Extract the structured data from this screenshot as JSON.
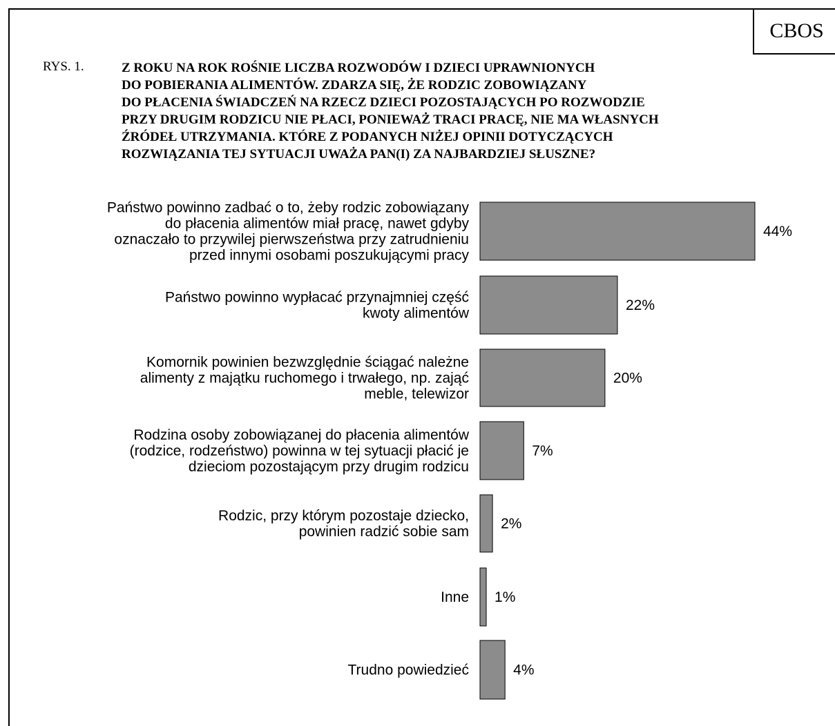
{
  "header": {
    "source_badge": "CBOS",
    "figure_label": "RYS. 1."
  },
  "question_lines": [
    "Z ROKU NA ROK ROŚNIE LICZBA ROZWODÓW I DZIECI UPRAWNIONYCH",
    "DO POBIERANIA ALIMENTÓW. ZDARZA SIĘ, ŻE RODZIC ZOBOWIĄZANY",
    "DO PŁACENIA ŚWIADCZEŃ NA RZECZ DZIECI POZOSTAJĄCYCH PO ROZWODZIE",
    "PRZY DRUGIM RODZICU NIE PŁACI, PONIEWAŻ TRACI PRACĘ, NIE MA WŁASNYCH",
    "ŹRÓDEŁ UTRZYMANIA. KTÓRE Z PODANYCH NIŻEJ OPINII DOTYCZĄCYCH",
    "ROZWIĄZANIA TEJ SYTUACJI UWAŻA PAN(I) ZA NAJBARDZIEJ SŁUSZNE?"
  ],
  "colors": {
    "bar_fill": "#8c8c8c",
    "bar_stroke": "#000000"
  },
  "chart_data": {
    "type": "bar",
    "orientation": "horizontal",
    "grid": false,
    "legend": "none",
    "xlim": [
      0,
      44
    ],
    "categories": [
      [
        "Państwo powinno zadbać o to, żeby rodzic zobowiązany",
        "do płacenia alimentów miał pracę, nawet gdyby",
        "oznaczało to przywilej pierwszeństwa przy zatrudnieniu",
        "przed innymi osobami poszukującymi pracy"
      ],
      [
        "Państwo powinno wypłacać przynajmniej część",
        "kwoty alimentów"
      ],
      [
        "Komornik powinien bezwzględnie ściągać należne",
        "alimenty z majątku ruchomego i trwałego, np. zająć",
        "meble, telewizor"
      ],
      [
        "Rodzina osoby zobowiązanej do płacenia alimentów",
        "(rodzice, rodzeństwo) powinna w tej sytuacji płacić je",
        "dzieciom pozostającym przy drugim rodzicu"
      ],
      [
        "Rodzic, przy którym pozostaje dziecko,",
        "powinien radzić sobie sam"
      ],
      [
        "Inne"
      ],
      [
        "Trudno powiedzieć"
      ]
    ],
    "values": [
      44,
      22,
      20,
      7,
      2,
      1,
      4
    ],
    "value_labels": [
      "44%",
      "22%",
      "20%",
      "7%",
      "2%",
      "1%",
      "4%"
    ]
  }
}
